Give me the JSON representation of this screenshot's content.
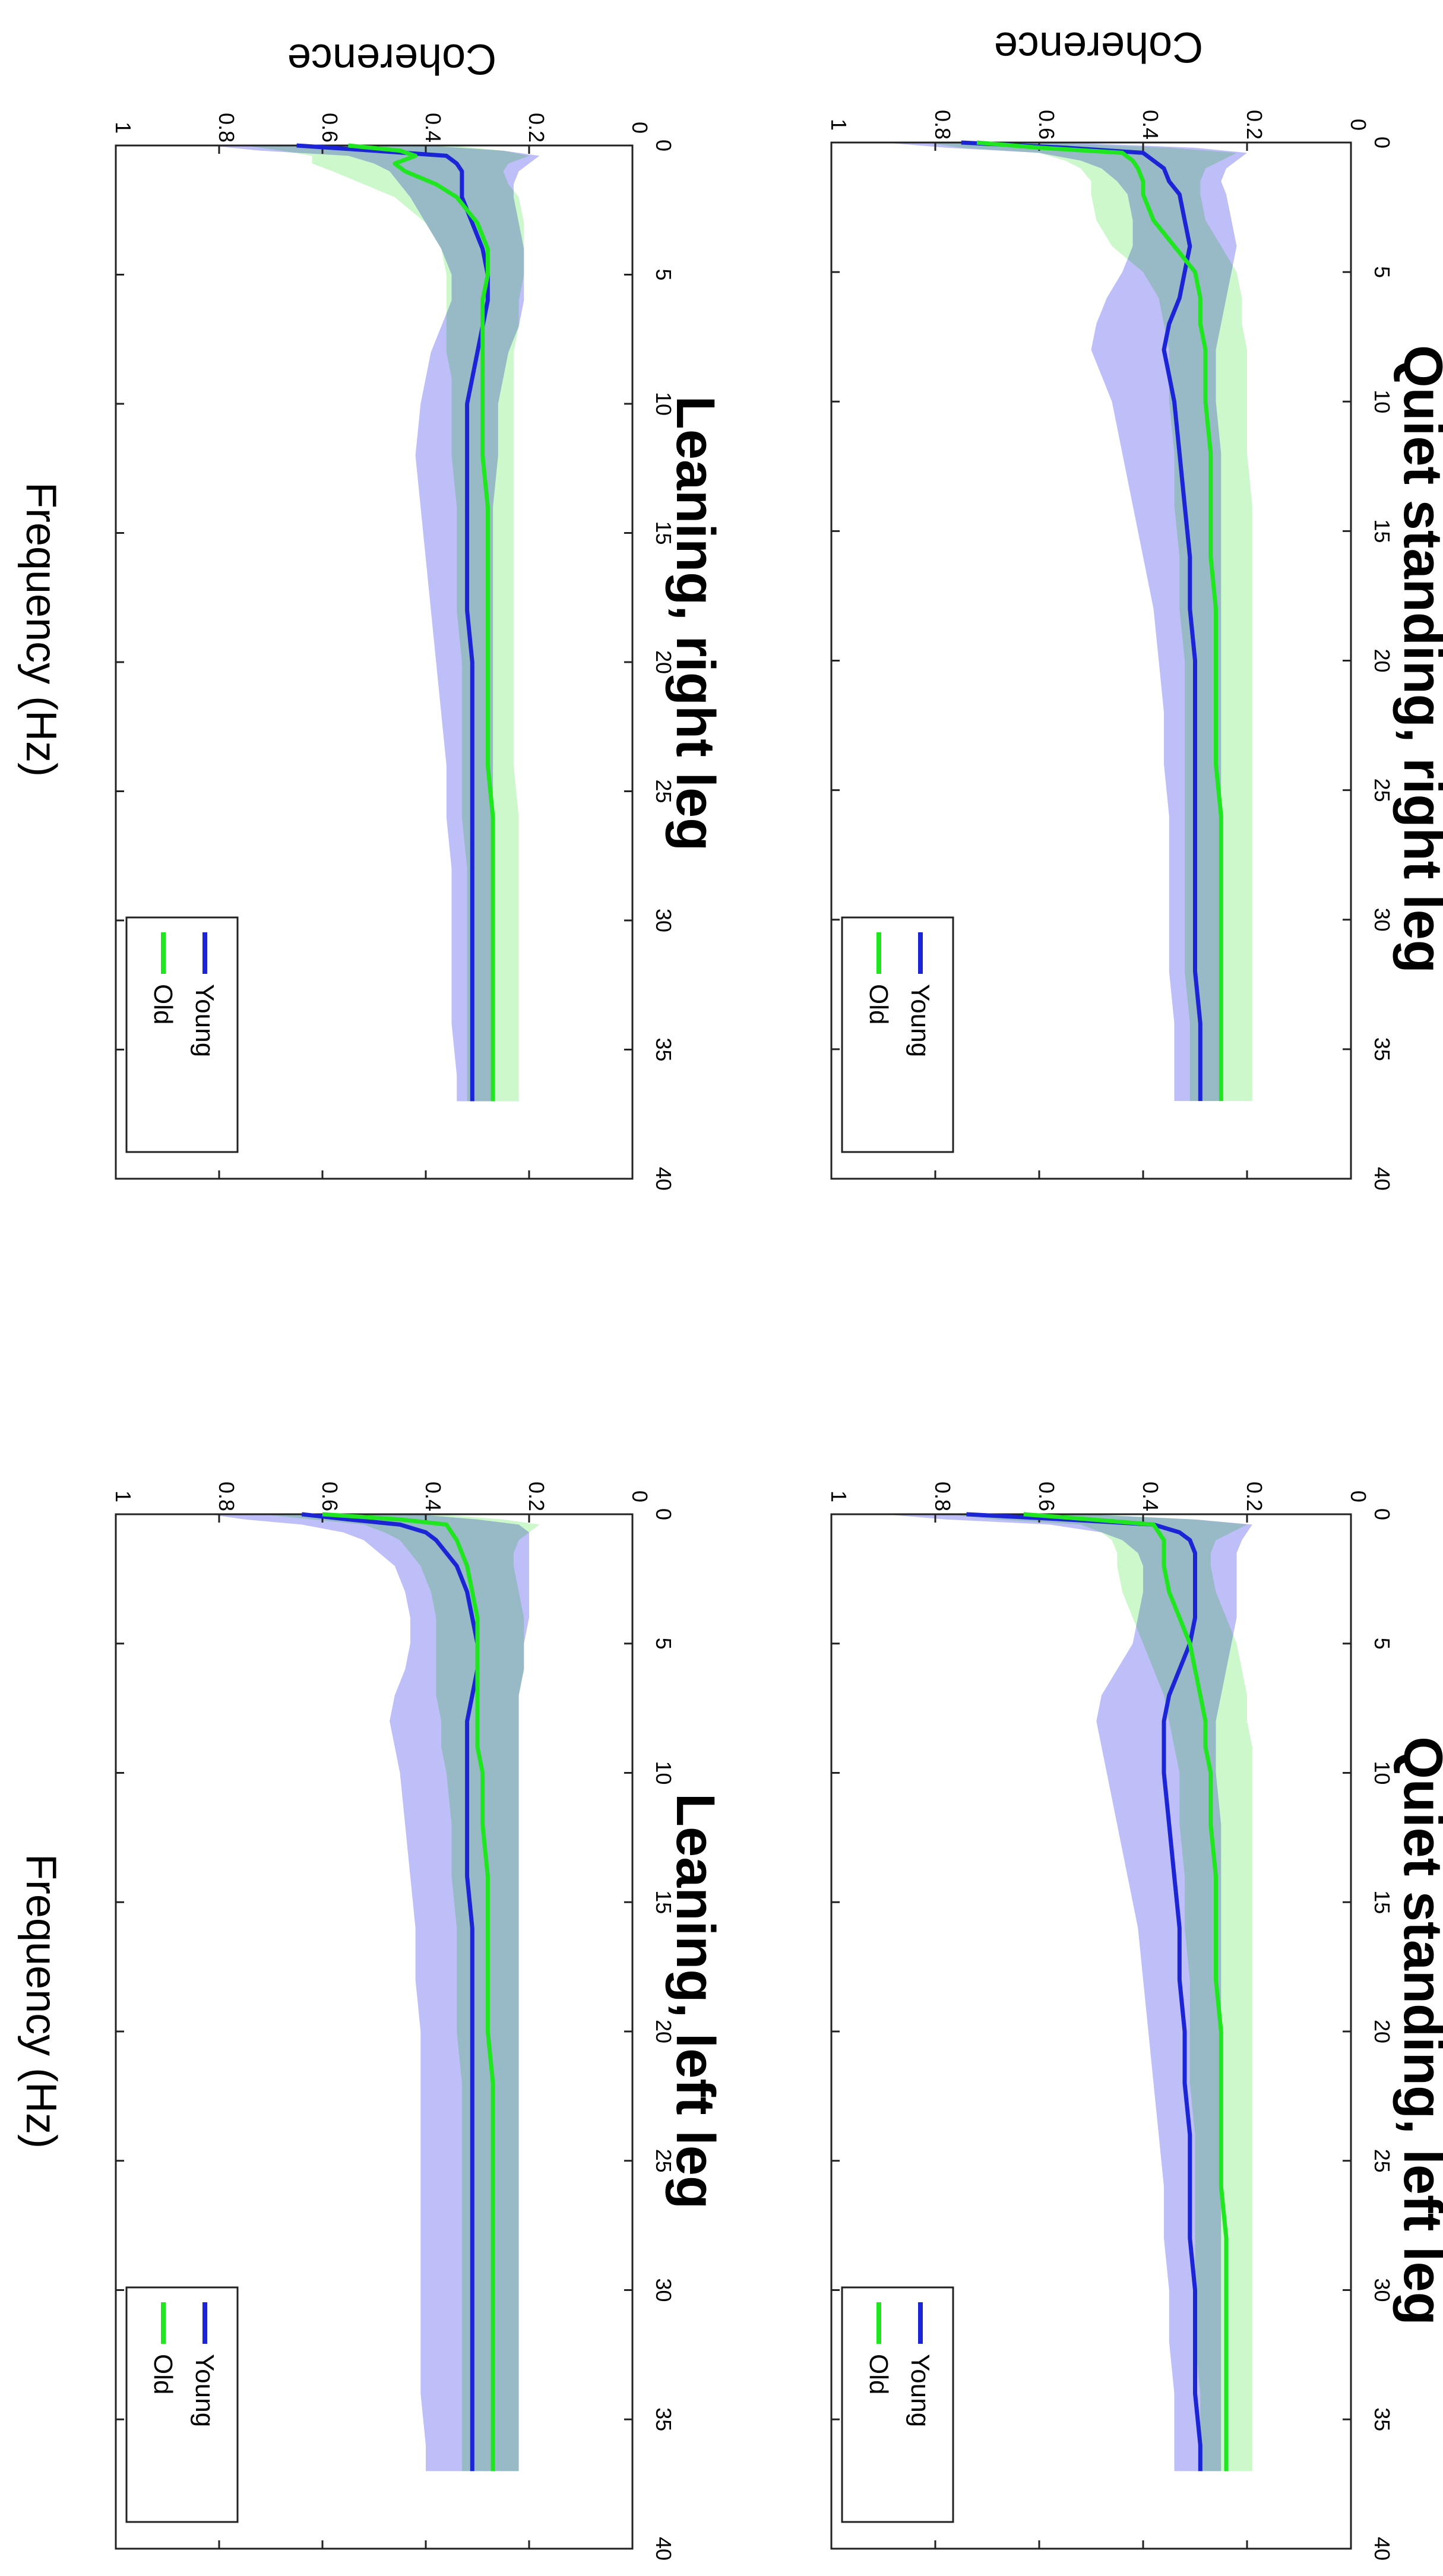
{
  "figure": {
    "ylabel": "Coherence",
    "xlabel": "Frequency (Hz)",
    "series_names": [
      "Young",
      "Old"
    ],
    "colors": {
      "young_line": "#1c25d6",
      "young_band": "#b3b3f7",
      "old_line": "#1fe61f",
      "old_band": "#b6f5b6",
      "overlap": "#8cc8bf"
    }
  },
  "chart_data": [
    {
      "type": "line",
      "title": "Quiet standing, right leg",
      "xlabel": "",
      "ylabel": "Coherence",
      "xlim": [
        0,
        40
      ],
      "ylim": [
        0,
        1
      ],
      "xticks": [
        "0",
        "5",
        "10",
        "15",
        "20",
        "25",
        "30",
        "35",
        "40"
      ],
      "yticks": [
        "0",
        "0.2",
        "0.4",
        "0.6",
        "0.8",
        "1"
      ],
      "legend": "bottom-right",
      "x": [
        0,
        0.2,
        0.4,
        0.7,
        1,
        1.5,
        2,
        3,
        4,
        5,
        6,
        7,
        8,
        9,
        10,
        12,
        14,
        16,
        18,
        20,
        22,
        24,
        26,
        28,
        30,
        32,
        34,
        36,
        37
      ],
      "series": [
        {
          "name": "Young",
          "values": [
            0.75,
            0.55,
            0.4,
            0.38,
            0.36,
            0.35,
            0.33,
            0.32,
            0.31,
            0.32,
            0.33,
            0.35,
            0.36,
            0.35,
            0.34,
            0.33,
            0.32,
            0.31,
            0.31,
            0.3,
            0.3,
            0.3,
            0.3,
            0.3,
            0.3,
            0.3,
            0.29,
            0.29,
            0.29
          ],
          "lower": [
            0.55,
            0.3,
            0.2,
            0.22,
            0.24,
            0.25,
            0.24,
            0.23,
            0.22,
            0.23,
            0.24,
            0.25,
            0.26,
            0.26,
            0.26,
            0.25,
            0.25,
            0.25,
            0.25,
            0.25,
            0.25,
            0.25,
            0.25,
            0.25,
            0.25,
            0.25,
            0.25,
            0.25,
            0.25
          ],
          "upper": [
            0.9,
            0.78,
            0.6,
            0.52,
            0.48,
            0.45,
            0.43,
            0.42,
            0.42,
            0.44,
            0.47,
            0.49,
            0.5,
            0.48,
            0.46,
            0.44,
            0.42,
            0.4,
            0.38,
            0.37,
            0.36,
            0.36,
            0.35,
            0.35,
            0.35,
            0.35,
            0.34,
            0.34,
            0.34
          ]
        },
        {
          "name": "Old",
          "values": [
            0.72,
            0.6,
            0.44,
            0.42,
            0.41,
            0.4,
            0.4,
            0.38,
            0.34,
            0.3,
            0.29,
            0.29,
            0.28,
            0.28,
            0.28,
            0.27,
            0.27,
            0.27,
            0.26,
            0.26,
            0.26,
            0.26,
            0.25,
            0.25,
            0.25,
            0.25,
            0.25,
            0.25,
            0.25
          ],
          "lower": [
            0.6,
            0.35,
            0.22,
            0.25,
            0.28,
            0.29,
            0.29,
            0.28,
            0.25,
            0.22,
            0.21,
            0.21,
            0.2,
            0.2,
            0.2,
            0.2,
            0.19,
            0.19,
            0.19,
            0.19,
            0.19,
            0.19,
            0.19,
            0.19,
            0.19,
            0.19,
            0.19,
            0.19,
            0.19
          ],
          "upper": [
            0.82,
            0.75,
            0.6,
            0.55,
            0.52,
            0.5,
            0.5,
            0.49,
            0.46,
            0.4,
            0.37,
            0.36,
            0.35,
            0.35,
            0.35,
            0.34,
            0.34,
            0.33,
            0.33,
            0.32,
            0.32,
            0.32,
            0.32,
            0.32,
            0.32,
            0.32,
            0.31,
            0.31,
            0.31
          ]
        }
      ]
    },
    {
      "type": "line",
      "title": "Quiet standing, left leg",
      "xlabel": "",
      "ylabel": "",
      "xlim": [
        0,
        40
      ],
      "ylim": [
        0,
        1
      ],
      "xticks": [
        "0",
        "5",
        "10",
        "15",
        "20",
        "25",
        "30",
        "35",
        "40"
      ],
      "yticks": [
        "0",
        "0.2",
        "0.4",
        "0.6",
        "0.8",
        "1"
      ],
      "legend": "bottom-right",
      "x": [
        0,
        0.2,
        0.4,
        0.7,
        1,
        1.5,
        2,
        3,
        4,
        5,
        6,
        7,
        8,
        9,
        10,
        12,
        14,
        16,
        18,
        20,
        22,
        24,
        26,
        28,
        30,
        32,
        34,
        36,
        37
      ],
      "series": [
        {
          "name": "Young",
          "values": [
            0.74,
            0.55,
            0.38,
            0.33,
            0.31,
            0.3,
            0.3,
            0.3,
            0.3,
            0.31,
            0.33,
            0.35,
            0.36,
            0.36,
            0.36,
            0.35,
            0.34,
            0.33,
            0.33,
            0.32,
            0.32,
            0.31,
            0.31,
            0.31,
            0.3,
            0.3,
            0.3,
            0.29,
            0.29
          ],
          "lower": [
            0.52,
            0.3,
            0.19,
            0.2,
            0.21,
            0.22,
            0.22,
            0.22,
            0.22,
            0.23,
            0.24,
            0.25,
            0.26,
            0.26,
            0.26,
            0.25,
            0.25,
            0.25,
            0.25,
            0.25,
            0.25,
            0.25,
            0.25,
            0.25,
            0.25,
            0.25,
            0.25,
            0.25,
            0.25
          ],
          "upper": [
            0.9,
            0.78,
            0.58,
            0.48,
            0.44,
            0.41,
            0.4,
            0.4,
            0.41,
            0.42,
            0.45,
            0.48,
            0.49,
            0.48,
            0.47,
            0.45,
            0.43,
            0.41,
            0.4,
            0.39,
            0.38,
            0.37,
            0.36,
            0.36,
            0.35,
            0.35,
            0.34,
            0.34,
            0.34
          ]
        },
        {
          "name": "Old",
          "values": [
            0.63,
            0.5,
            0.38,
            0.37,
            0.36,
            0.36,
            0.36,
            0.35,
            0.33,
            0.31,
            0.3,
            0.29,
            0.28,
            0.28,
            0.27,
            0.27,
            0.26,
            0.26,
            0.26,
            0.25,
            0.25,
            0.25,
            0.25,
            0.24,
            0.24,
            0.24,
            0.24,
            0.24,
            0.24
          ],
          "lower": [
            0.5,
            0.3,
            0.2,
            0.23,
            0.26,
            0.27,
            0.27,
            0.26,
            0.24,
            0.22,
            0.21,
            0.2,
            0.2,
            0.19,
            0.19,
            0.19,
            0.19,
            0.19,
            0.19,
            0.19,
            0.19,
            0.19,
            0.19,
            0.19,
            0.19,
            0.19,
            0.19,
            0.19,
            0.19
          ],
          "upper": [
            0.78,
            0.68,
            0.52,
            0.48,
            0.46,
            0.45,
            0.45,
            0.44,
            0.42,
            0.4,
            0.38,
            0.36,
            0.35,
            0.34,
            0.33,
            0.33,
            0.32,
            0.32,
            0.31,
            0.31,
            0.31,
            0.3,
            0.3,
            0.3,
            0.3,
            0.3,
            0.29,
            0.29,
            0.29
          ]
        }
      ]
    },
    {
      "type": "line",
      "title": "Leaning, right leg",
      "xlabel": "Frequency (Hz)",
      "ylabel": "Coherence",
      "xlim": [
        0,
        40
      ],
      "ylim": [
        0,
        1
      ],
      "xticks": [
        "0",
        "5",
        "10",
        "15",
        "20",
        "25",
        "30",
        "35",
        "40"
      ],
      "yticks": [
        "0",
        "0.2",
        "0.4",
        "0.6",
        "0.8",
        "1"
      ],
      "legend": "bottom-right",
      "x": [
        0,
        0.2,
        0.4,
        0.7,
        1,
        1.5,
        2,
        3,
        4,
        5,
        6,
        7,
        8,
        9,
        10,
        12,
        14,
        16,
        18,
        20,
        22,
        24,
        26,
        28,
        30,
        32,
        34,
        36,
        37
      ],
      "series": [
        {
          "name": "Young",
          "values": [
            0.65,
            0.5,
            0.36,
            0.34,
            0.33,
            0.33,
            0.33,
            0.31,
            0.29,
            0.28,
            0.28,
            0.29,
            0.3,
            0.31,
            0.32,
            0.32,
            0.32,
            0.32,
            0.32,
            0.31,
            0.31,
            0.31,
            0.31,
            0.31,
            0.31,
            0.31,
            0.31,
            0.31,
            0.31
          ],
          "lower": [
            0.4,
            0.25,
            0.18,
            0.2,
            0.22,
            0.23,
            0.23,
            0.22,
            0.21,
            0.21,
            0.21,
            0.22,
            0.24,
            0.25,
            0.26,
            0.26,
            0.27,
            0.27,
            0.27,
            0.27,
            0.27,
            0.27,
            0.27,
            0.27,
            0.27,
            0.27,
            0.27,
            0.27,
            0.27
          ],
          "upper": [
            0.82,
            0.72,
            0.55,
            0.5,
            0.47,
            0.45,
            0.43,
            0.4,
            0.37,
            0.35,
            0.35,
            0.37,
            0.39,
            0.4,
            0.41,
            0.42,
            0.41,
            0.4,
            0.39,
            0.38,
            0.37,
            0.36,
            0.36,
            0.35,
            0.35,
            0.35,
            0.35,
            0.34,
            0.34
          ]
        },
        {
          "name": "Old",
          "values": [
            0.55,
            0.45,
            0.42,
            0.46,
            0.44,
            0.38,
            0.34,
            0.3,
            0.28,
            0.28,
            0.29,
            0.29,
            0.29,
            0.29,
            0.29,
            0.29,
            0.28,
            0.28,
            0.28,
            0.28,
            0.28,
            0.28,
            0.27,
            0.27,
            0.27,
            0.27,
            0.27,
            0.27,
            0.27
          ],
          "lower": [
            0.35,
            0.25,
            0.2,
            0.24,
            0.25,
            0.24,
            0.22,
            0.21,
            0.21,
            0.21,
            0.22,
            0.22,
            0.23,
            0.23,
            0.23,
            0.23,
            0.23,
            0.23,
            0.23,
            0.23,
            0.23,
            0.23,
            0.22,
            0.22,
            0.22,
            0.22,
            0.22,
            0.22,
            0.22
          ],
          "upper": [
            0.75,
            0.68,
            0.62,
            0.62,
            0.58,
            0.52,
            0.46,
            0.4,
            0.37,
            0.36,
            0.36,
            0.36,
            0.36,
            0.35,
            0.35,
            0.35,
            0.34,
            0.34,
            0.34,
            0.33,
            0.33,
            0.33,
            0.33,
            0.32,
            0.32,
            0.32,
            0.32,
            0.32,
            0.32
          ]
        }
      ]
    },
    {
      "type": "line",
      "title": "Leaning, left leg",
      "xlabel": "Frequency (Hz)",
      "ylabel": "",
      "xlim": [
        0,
        40
      ],
      "ylim": [
        0,
        1
      ],
      "xticks": [
        "0",
        "5",
        "10",
        "15",
        "20",
        "25",
        "30",
        "35",
        "40"
      ],
      "yticks": [
        "0",
        "0.2",
        "0.4",
        "0.6",
        "0.8",
        "1"
      ],
      "legend": "bottom-right",
      "x": [
        0,
        0.2,
        0.4,
        0.7,
        1,
        1.5,
        2,
        3,
        4,
        5,
        6,
        7,
        8,
        9,
        10,
        12,
        14,
        16,
        18,
        20,
        22,
        24,
        26,
        28,
        30,
        32,
        34,
        36,
        37
      ],
      "series": [
        {
          "name": "Young",
          "values": [
            0.64,
            0.55,
            0.45,
            0.4,
            0.38,
            0.36,
            0.34,
            0.32,
            0.31,
            0.3,
            0.3,
            0.31,
            0.32,
            0.32,
            0.32,
            0.32,
            0.32,
            0.31,
            0.31,
            0.31,
            0.31,
            0.31,
            0.31,
            0.31,
            0.31,
            0.31,
            0.31,
            0.31,
            0.31
          ],
          "lower": [
            0.42,
            0.3,
            0.22,
            0.2,
            0.2,
            0.2,
            0.2,
            0.2,
            0.2,
            0.21,
            0.21,
            0.22,
            0.22,
            0.22,
            0.22,
            0.22,
            0.22,
            0.22,
            0.22,
            0.22,
            0.22,
            0.22,
            0.22,
            0.22,
            0.22,
            0.22,
            0.22,
            0.22,
            0.22
          ],
          "upper": [
            0.82,
            0.75,
            0.64,
            0.56,
            0.52,
            0.49,
            0.46,
            0.44,
            0.43,
            0.43,
            0.44,
            0.46,
            0.47,
            0.46,
            0.45,
            0.44,
            0.43,
            0.42,
            0.42,
            0.41,
            0.41,
            0.41,
            0.41,
            0.41,
            0.41,
            0.41,
            0.41,
            0.4,
            0.4
          ]
        },
        {
          "name": "Old",
          "values": [
            0.6,
            0.45,
            0.36,
            0.35,
            0.34,
            0.33,
            0.32,
            0.31,
            0.3,
            0.3,
            0.3,
            0.3,
            0.3,
            0.3,
            0.29,
            0.29,
            0.28,
            0.28,
            0.28,
            0.28,
            0.27,
            0.27,
            0.27,
            0.27,
            0.27,
            0.27,
            0.27,
            0.27,
            0.27
          ],
          "lower": [
            0.38,
            0.25,
            0.18,
            0.2,
            0.22,
            0.23,
            0.23,
            0.22,
            0.21,
            0.21,
            0.21,
            0.22,
            0.22,
            0.22,
            0.22,
            0.22,
            0.22,
            0.22,
            0.22,
            0.22,
            0.22,
            0.22,
            0.22,
            0.22,
            0.22,
            0.22,
            0.22,
            0.22,
            0.22
          ],
          "upper": [
            0.72,
            0.62,
            0.52,
            0.48,
            0.45,
            0.43,
            0.41,
            0.39,
            0.38,
            0.38,
            0.38,
            0.38,
            0.37,
            0.37,
            0.36,
            0.35,
            0.35,
            0.34,
            0.34,
            0.34,
            0.33,
            0.33,
            0.33,
            0.33,
            0.33,
            0.33,
            0.33,
            0.33,
            0.33
          ]
        }
      ]
    }
  ]
}
